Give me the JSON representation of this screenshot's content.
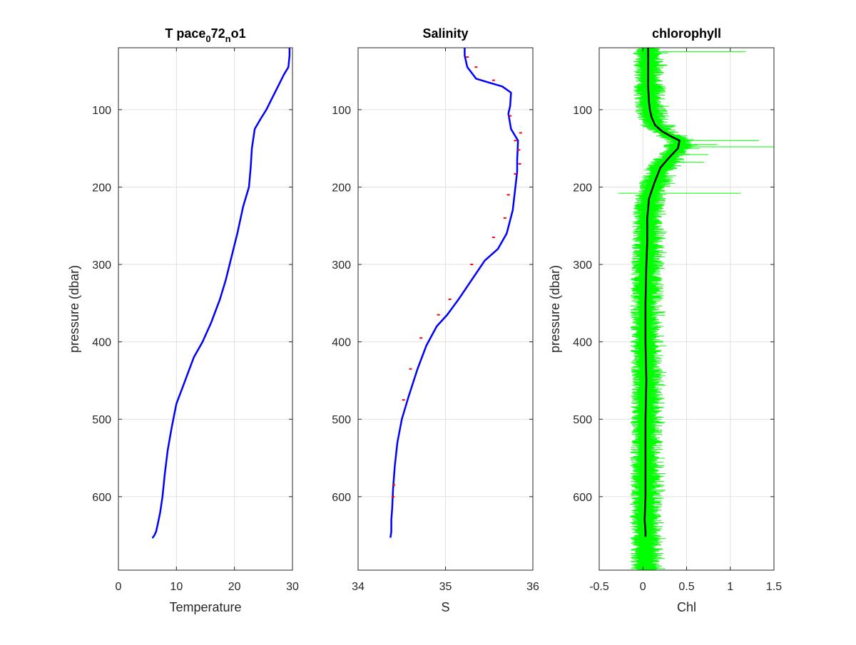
{
  "chart_data": [
    {
      "type": "line",
      "title": "T pace",
      "title_sub": "0",
      "title_mid": "72",
      "title_sub2": "n",
      "title_tail": "o1",
      "xlabel": "Temperature",
      "ylabel": "pressure (dbar)",
      "xlim": [
        0,
        30
      ],
      "ylim": [
        20,
        695
      ],
      "y_reversed": true,
      "xticks": [
        "0",
        "10",
        "20",
        "30"
      ],
      "xtick_values": [
        0,
        10,
        20,
        30
      ],
      "yticks": [
        "100",
        "200",
        "300",
        "400",
        "500",
        "600"
      ],
      "ytick_values": [
        100,
        200,
        300,
        400,
        500,
        600
      ],
      "grid": true,
      "series": [
        {
          "color": "#0000ff",
          "x": [
            29.5,
            29.5,
            29.3,
            28.5,
            27.5,
            26.5,
            25.5,
            24.5,
            23.5,
            23.0,
            22.8,
            22.5,
            21.5,
            20.5,
            19.5,
            18.5,
            17.5,
            16.0,
            14.5,
            13.0,
            12.0,
            11.0,
            10.0,
            9.2,
            8.5,
            8.0,
            7.6,
            7.2,
            6.8,
            6.5,
            6.2,
            6.0,
            5.9,
            5.8
          ],
          "y": [
            20,
            30,
            45,
            55,
            70,
            85,
            100,
            112,
            125,
            150,
            175,
            200,
            225,
            260,
            290,
            320,
            345,
            375,
            400,
            420,
            440,
            460,
            480,
            510,
            540,
            570,
            600,
            620,
            635,
            645,
            650,
            652,
            653,
            653
          ]
        }
      ]
    },
    {
      "type": "line",
      "title": "Salinity",
      "xlabel": "S",
      "ylabel": "",
      "xlim": [
        34,
        36
      ],
      "ylim": [
        20,
        695
      ],
      "y_reversed": true,
      "xticks": [
        "34",
        "35",
        "36"
      ],
      "xtick_values": [
        34,
        35,
        36
      ],
      "yticks": [
        "100",
        "200",
        "300",
        "400",
        "500",
        "600"
      ],
      "ytick_values": [
        100,
        200,
        300,
        400,
        500,
        600
      ],
      "grid": true,
      "series": [
        {
          "color": "#0000ff",
          "x": [
            35.22,
            35.22,
            35.25,
            35.35,
            35.5,
            35.65,
            35.75,
            35.74,
            35.72,
            35.75,
            35.83,
            35.82,
            35.82,
            35.8,
            35.77,
            35.7,
            35.6,
            35.45,
            35.3,
            35.15,
            35.02,
            34.9,
            34.78,
            34.68,
            34.58,
            34.5,
            34.45,
            34.42,
            34.4,
            34.39,
            34.38,
            34.38,
            34.37
          ],
          "y": [
            20,
            30,
            45,
            60,
            65,
            70,
            78,
            95,
            105,
            125,
            140,
            165,
            180,
            200,
            230,
            260,
            280,
            295,
            320,
            345,
            365,
            380,
            405,
            435,
            470,
            500,
            530,
            560,
            590,
            615,
            630,
            645,
            653
          ]
        },
        {
          "color": "#ff0000",
          "x": [
            35.25,
            35.35,
            35.55,
            35.74,
            35.86,
            35.8,
            35.84,
            35.85,
            35.8,
            35.72,
            35.68,
            35.55,
            35.3,
            35.05,
            34.92,
            34.72,
            34.6,
            34.52,
            34.41,
            34.4
          ],
          "y": [
            32,
            45,
            62,
            108,
            130,
            140,
            152,
            170,
            183,
            210,
            240,
            265,
            300,
            345,
            365,
            395,
            435,
            475,
            585,
            600
          ]
        }
      ]
    },
    {
      "type": "line",
      "title": "chlorophyll",
      "xlabel": "Chl",
      "ylabel": "pressure (dbar)",
      "xlim": [
        -0.5,
        1.5
      ],
      "ylim": [
        20,
        695
      ],
      "y_reversed": true,
      "xticks": [
        "-0.5",
        "0",
        "0.5",
        "1",
        "1.5"
      ],
      "xtick_values": [
        -0.5,
        0,
        0.5,
        1,
        1.5
      ],
      "yticks": [
        "100",
        "200",
        "300",
        "400",
        "500",
        "600"
      ],
      "ytick_values": [
        100,
        200,
        300,
        400,
        500,
        600
      ],
      "grid": true,
      "series": [
        {
          "color": "#00ff00",
          "band_half_width": 0.12,
          "spikes": [
            {
              "y": 25,
              "x": 1.18
            },
            {
              "y": 140,
              "x": 1.33
            },
            {
              "y": 145,
              "x": 0.85
            },
            {
              "y": 148,
              "x": 1.58
            },
            {
              "y": 150,
              "x": 0.65
            },
            {
              "y": 158,
              "x": 0.75
            },
            {
              "y": 168,
              "x": 0.7
            },
            {
              "y": 208,
              "x": 1.12
            },
            {
              "y": 208,
              "x": -0.28
            }
          ]
        },
        {
          "color": "#000000",
          "x": [
            0.06,
            0.06,
            0.06,
            0.07,
            0.08,
            0.1,
            0.14,
            0.22,
            0.33,
            0.42,
            0.4,
            0.3,
            0.2,
            0.13,
            0.07,
            0.05,
            0.05,
            0.04,
            0.03,
            0.03,
            0.04,
            0.03,
            0.03,
            0.03,
            0.02,
            0.03,
            0.03
          ],
          "y": [
            20,
            40,
            70,
            90,
            100,
            110,
            120,
            128,
            135,
            140,
            150,
            162,
            175,
            195,
            215,
            240,
            270,
            300,
            350,
            400,
            450,
            500,
            550,
            600,
            630,
            645,
            652
          ]
        }
      ]
    }
  ]
}
